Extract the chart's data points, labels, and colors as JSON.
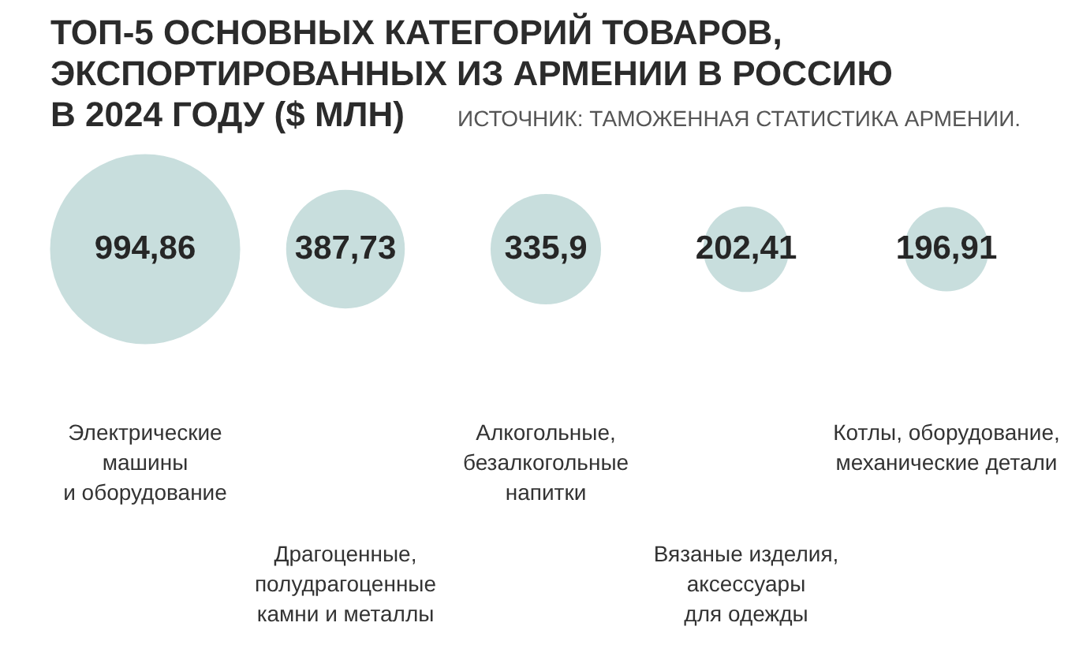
{
  "chart_data": {
    "type": "other",
    "title": "ТОП-5 ОСНОВНЫХ КАТЕГОРИЙ ТОВАРОВ,\nЭКСПОРТИРОВАННЫХ ИЗ АРМЕНИИ В РОССИЮ\nВ 2024 ГОДУ ($ МЛН)",
    "annotations": [
      "ИСТОЧНИК: ТАМОЖЕННАЯ СТАТИСТИКА АРМЕНИИ."
    ],
    "categories": [
      "Электрические\nмашины\nи оборудование",
      "Драгоценные,\nполудрагоценные\nкамни и металлы",
      "Алкогольные,\nбезалкогольные\nнапитки",
      "Вязаные изделия,\nаксессуары\nдля одежды",
      "Котлы, оборудование,\nмеханические детали"
    ],
    "values": [
      994.86,
      387.73,
      335.9,
      202.41,
      196.91
    ],
    "value_labels": [
      "994,86",
      "387,73",
      "335,9",
      "202,41",
      "196,91"
    ],
    "color": "#c8dedd"
  }
}
